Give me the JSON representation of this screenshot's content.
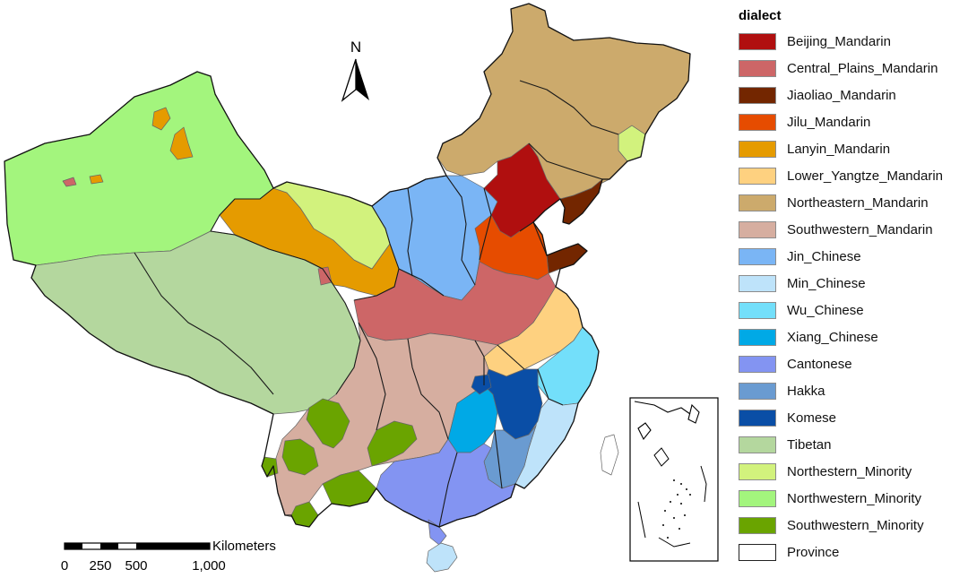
{
  "north_label": "N",
  "scale": {
    "unit": "Kilometers",
    "ticks": [
      "0",
      "250",
      "500",
      "1,000"
    ]
  },
  "legend": {
    "title": "dialect",
    "items": [
      {
        "label": "Beijing_Mandarin",
        "color": "#b00f0f"
      },
      {
        "label": "Central_Plains_Mandarin",
        "color": "#cd6667"
      },
      {
        "label": "Jiaoliao_Mandarin",
        "color": "#732600"
      },
      {
        "label": "Jilu_Mandarin",
        "color": "#e64c00"
      },
      {
        "label": "Lanyin_Mandarin",
        "color": "#e59b00"
      },
      {
        "label": "Lower_Yangtze_Mandarin",
        "color": "#fed180"
      },
      {
        "label": "Northeastern_Mandarin",
        "color": "#ccaa6c"
      },
      {
        "label": "Southwestern_Mandarin",
        "color": "#d6aea0"
      },
      {
        "label": "Jin_Chinese",
        "color": "#7ab5f5"
      },
      {
        "label": "Min_Chinese",
        "color": "#bee3fa"
      },
      {
        "label": "Wu_Chinese",
        "color": "#73dffa"
      },
      {
        "label": "Xiang_Chinese",
        "color": "#00a9e6"
      },
      {
        "label": "Cantonese",
        "color": "#8394f2"
      },
      {
        "label": "Hakka",
        "color": "#6a9bd1"
      },
      {
        "label": "Komese",
        "color": "#0a4ea6"
      },
      {
        "label": "Tibetan",
        "color": "#b4d79e"
      },
      {
        "label": "Northestern_Minority",
        "color": "#d2f27d"
      },
      {
        "label": "Northwestern_Minority",
        "color": "#a3f57d"
      },
      {
        "label": "Southwestern_Minority",
        "color": "#6aa400"
      },
      {
        "label": "Province",
        "color": "#ffffff"
      }
    ]
  }
}
